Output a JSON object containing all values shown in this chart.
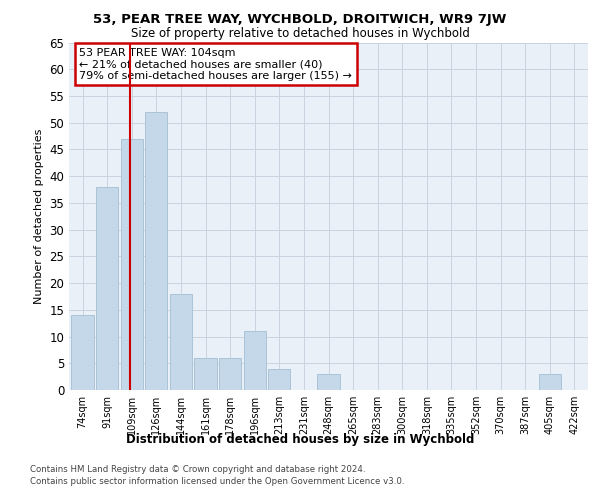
{
  "title": "53, PEAR TREE WAY, WYCHBOLD, DROITWICH, WR9 7JW",
  "subtitle": "Size of property relative to detached houses in Wychbold",
  "xlabel_bottom": "Distribution of detached houses by size in Wychbold",
  "ylabel": "Number of detached properties",
  "categories": [
    "74sqm",
    "91sqm",
    "109sqm",
    "126sqm",
    "144sqm",
    "161sqm",
    "178sqm",
    "196sqm",
    "213sqm",
    "231sqm",
    "248sqm",
    "265sqm",
    "283sqm",
    "300sqm",
    "318sqm",
    "335sqm",
    "352sqm",
    "370sqm",
    "387sqm",
    "405sqm",
    "422sqm"
  ],
  "values": [
    14,
    38,
    47,
    52,
    18,
    6,
    6,
    11,
    4,
    0,
    3,
    0,
    0,
    0,
    0,
    0,
    0,
    0,
    0,
    3,
    0
  ],
  "bar_color": "#c5d8ea",
  "bar_edgecolor": "#aac4d8",
  "grid_color": "#c8d4e0",
  "background_color": "#eaf0f8",
  "annotation_text_line1": "53 PEAR TREE WAY: 104sqm",
  "annotation_text_line2": "← 21% of detached houses are smaller (40)",
  "annotation_text_line3": "79% of semi-detached houses are larger (155) →",
  "annotation_box_color": "#ffffff",
  "annotation_box_edgecolor": "#cc0000",
  "vline_x": 1.92,
  "vline_color": "#cc0000",
  "ylim": [
    0,
    65
  ],
  "yticks": [
    0,
    5,
    10,
    15,
    20,
    25,
    30,
    35,
    40,
    45,
    50,
    55,
    60,
    65
  ],
  "footer_line1": "Contains HM Land Registry data © Crown copyright and database right 2024.",
  "footer_line2": "Contains public sector information licensed under the Open Government Licence v3.0."
}
